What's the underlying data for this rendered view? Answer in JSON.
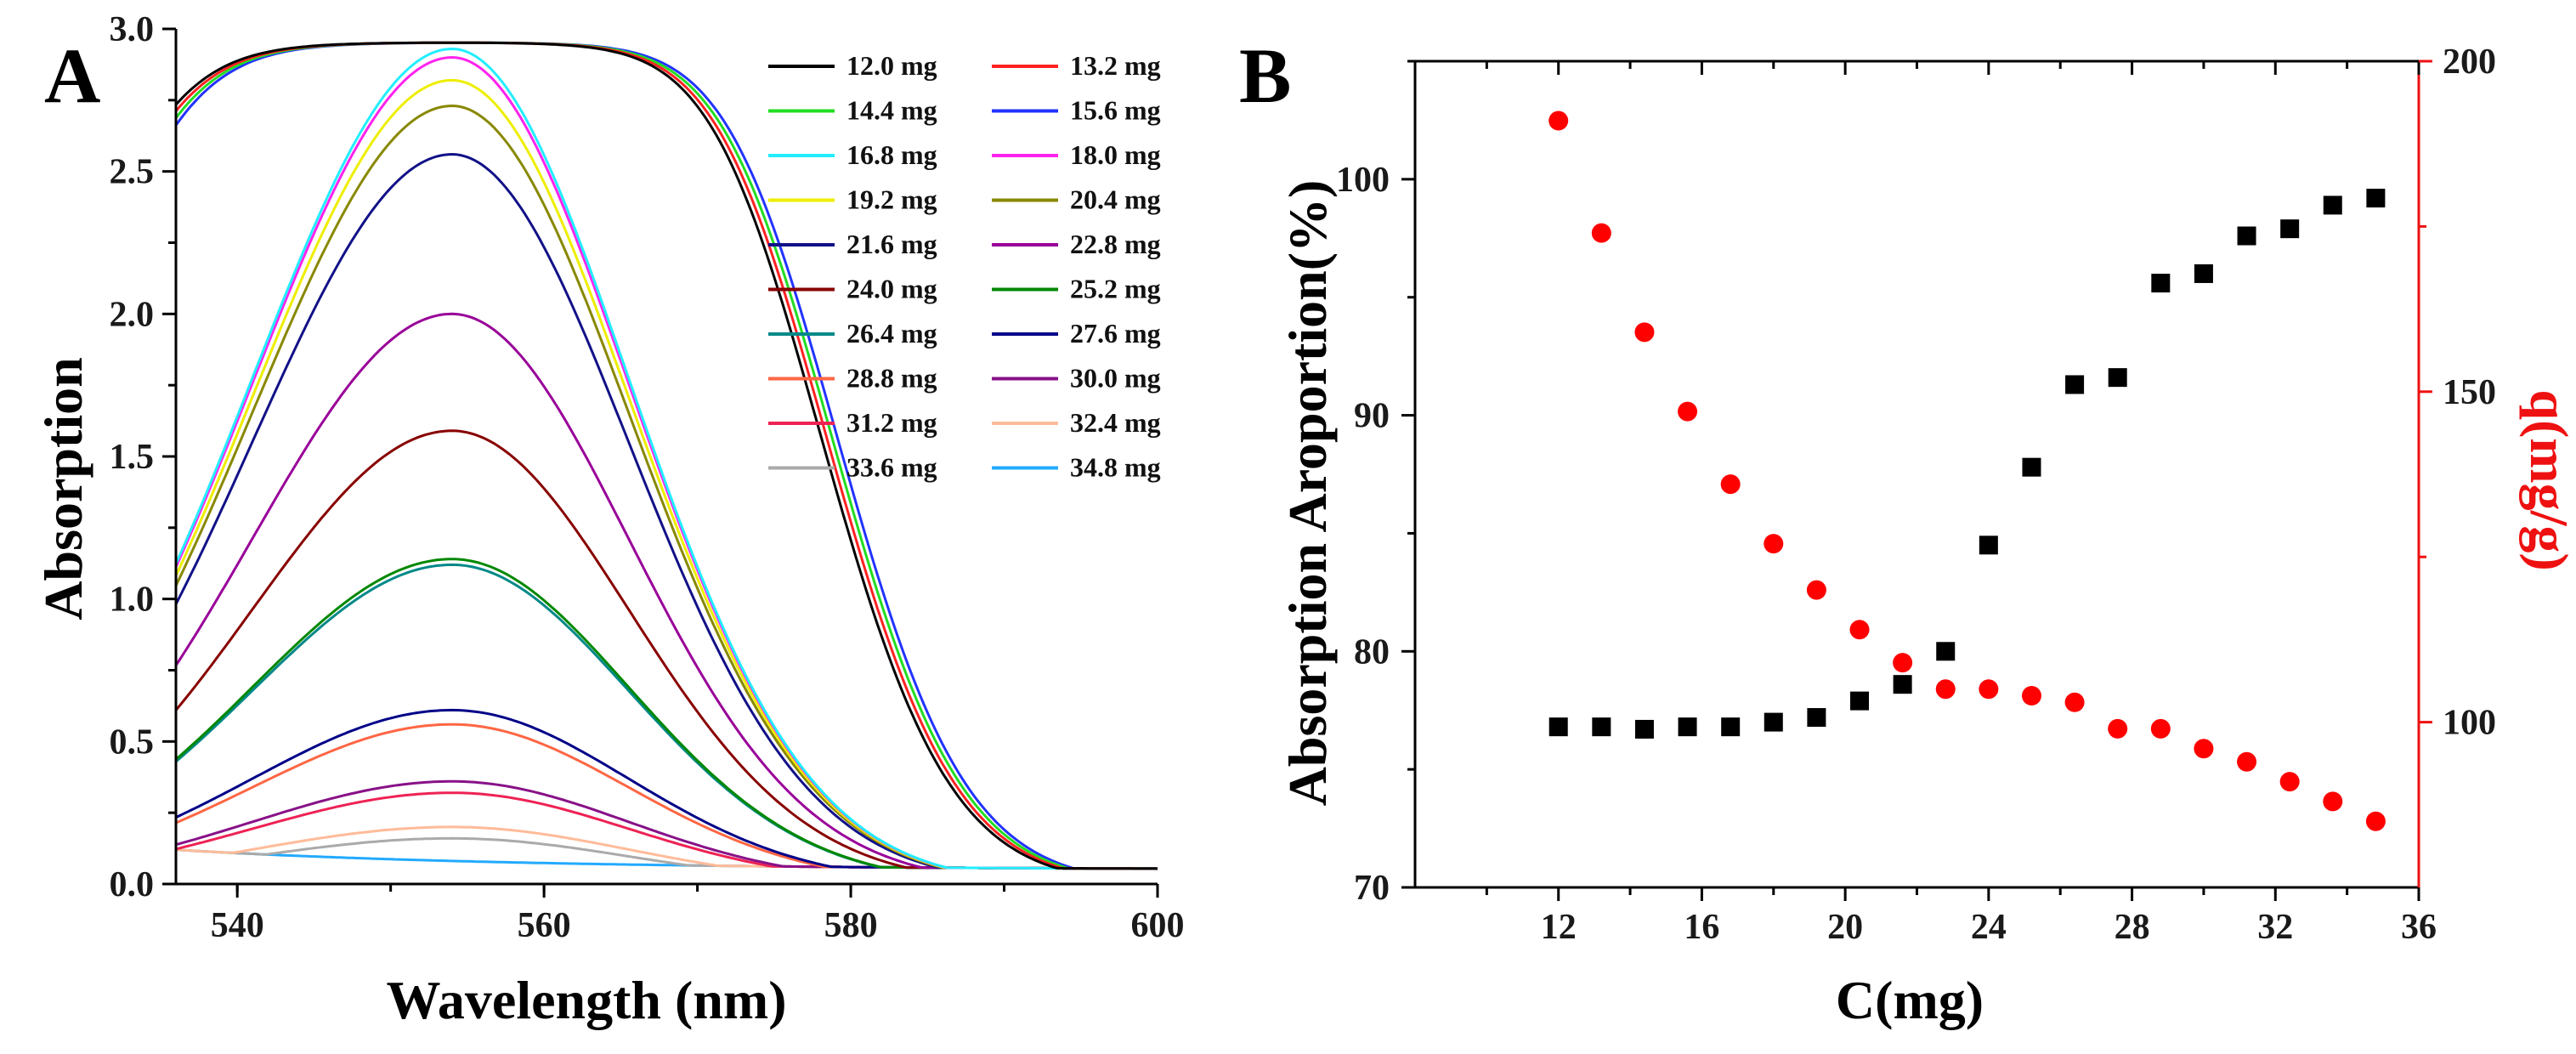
{
  "chart_data": [
    {
      "panel": "A",
      "type": "line",
      "xlabel": "Wavelength (nm)",
      "ylabel": "Absorption",
      "xlim": [
        536,
        600
      ],
      "ylim": [
        0,
        3.0
      ],
      "x_ticks": [
        "540",
        "560",
        "580",
        "600"
      ],
      "y_ticks": [
        "0.0",
        "0.5",
        "1.0",
        "1.5",
        "2.0",
        "2.5",
        "3.0"
      ],
      "legend_position": "top-right",
      "series": [
        {
          "name": "12.0 mg",
          "color": "#000000",
          "peak": 2.95,
          "order": 0
        },
        {
          "name": "13.2 mg",
          "color": "#ff2222",
          "peak": 2.95,
          "order": 1
        },
        {
          "name": "14.4 mg",
          "color": "#22dd22",
          "peak": 2.95,
          "order": 2
        },
        {
          "name": "15.6 mg",
          "color": "#2233ff",
          "peak": 2.95,
          "order": 3
        },
        {
          "name": "16.8 mg",
          "color": "#22eeff",
          "peak": 2.93,
          "order": 4
        },
        {
          "name": "18.0 mg",
          "color": "#ff22ee",
          "peak": 2.9,
          "order": 5
        },
        {
          "name": "19.2 mg",
          "color": "#eeee00",
          "peak": 2.82,
          "order": 6
        },
        {
          "name": "20.4 mg",
          "color": "#888800",
          "peak": 2.73,
          "order": 7
        },
        {
          "name": "21.6 mg",
          "color": "#111188",
          "peak": 2.56,
          "order": 8
        },
        {
          "name": "22.8 mg",
          "color": "#990099",
          "peak": 2.0,
          "order": 9
        },
        {
          "name": "24.0 mg",
          "color": "#880000",
          "peak": 1.59,
          "order": 10
        },
        {
          "name": "25.2 mg",
          "color": "#008800",
          "peak": 1.14,
          "order": 11
        },
        {
          "name": "26.4 mg",
          "color": "#008888",
          "peak": 1.12,
          "order": 12
        },
        {
          "name": "27.6 mg",
          "color": "#000088",
          "peak": 0.61,
          "order": 13
        },
        {
          "name": "28.8 mg",
          "color": "#ff6644",
          "peak": 0.56,
          "order": 14
        },
        {
          "name": "30.0 mg",
          "color": "#881188",
          "peak": 0.36,
          "order": 15
        },
        {
          "name": "31.2 mg",
          "color": "#ee2255",
          "peak": 0.32,
          "order": 16
        },
        {
          "name": "32.4 mg",
          "color": "#ffbb99",
          "peak": 0.2,
          "order": 17
        },
        {
          "name": "33.6 mg",
          "color": "#aaaaaa",
          "peak": 0.16,
          "order": 18
        },
        {
          "name": "34.8 mg",
          "color": "#22aaff",
          "peak": 0.0,
          "order": 19
        }
      ],
      "peak_wavelength": 554
    },
    {
      "panel": "B",
      "type": "scatter",
      "xlabel": "C(mg)",
      "ylabel_left": "Absorption Aroportion(%)",
      "ylabel_right": "q(mg/g)",
      "xlim": [
        8,
        36
      ],
      "ylim_left": [
        70,
        105
      ],
      "ylim_right": [
        75,
        200
      ],
      "x_ticks": [
        "12",
        "16",
        "20",
        "24",
        "28",
        "32",
        "36"
      ],
      "y_ticks_left": [
        "70",
        "80",
        "90",
        "100"
      ],
      "y_ticks_right": [
        "100",
        "150",
        "200"
      ],
      "x": [
        12.0,
        13.2,
        14.4,
        15.6,
        16.8,
        18.0,
        19.2,
        20.4,
        21.6,
        22.8,
        24.0,
        25.2,
        26.4,
        27.6,
        28.8,
        30.0,
        31.2,
        32.4,
        33.6,
        34.8
      ],
      "series": [
        {
          "name": "Absorption Aroportion(%)",
          "axis": "left",
          "marker": "square",
          "color": "#000000",
          "values": [
            76.8,
            76.8,
            76.7,
            76.8,
            76.8,
            77.0,
            77.2,
            77.9,
            78.6,
            80.0,
            84.5,
            87.8,
            91.3,
            91.6,
            95.6,
            96.0,
            97.6,
            97.9,
            98.9,
            99.2
          ]
        },
        {
          "name": "q(mg/g)",
          "axis": "right",
          "marker": "circle",
          "color": "#ff0000",
          "values": [
            191,
            174,
            159,
            147,
            136,
            127,
            120,
            114,
            109,
            105,
            105,
            104,
            103,
            99,
            99,
            96,
            94,
            91,
            88,
            85
          ]
        }
      ]
    }
  ]
}
